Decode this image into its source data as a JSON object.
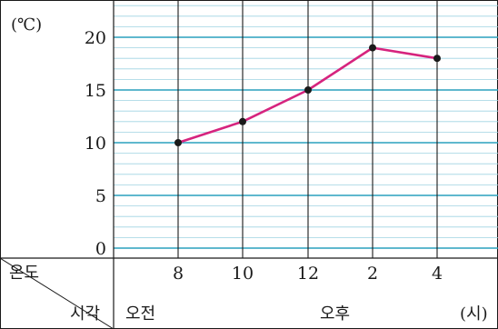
{
  "chart_data": {
    "type": "line",
    "x": [
      "8",
      "10",
      "12",
      "2",
      "4"
    ],
    "y": [
      10,
      12,
      15,
      19,
      18
    ],
    "ylim": [
      0,
      23
    ],
    "y_ticks": [
      "0",
      "5",
      "10",
      "15",
      "20"
    ],
    "unit_label": "(℃)",
    "row_header_top": "온도",
    "row_header_bottom": "시각",
    "period_labels": [
      "오전",
      "오후"
    ],
    "x_unit": "(시)",
    "grid": true,
    "colors": {
      "line": "#d6247e",
      "point": "#1a1a1a",
      "grid_major": "#2aa1be",
      "grid_minor": "#9fd4e2",
      "vertical": "#1a1a1a"
    }
  }
}
